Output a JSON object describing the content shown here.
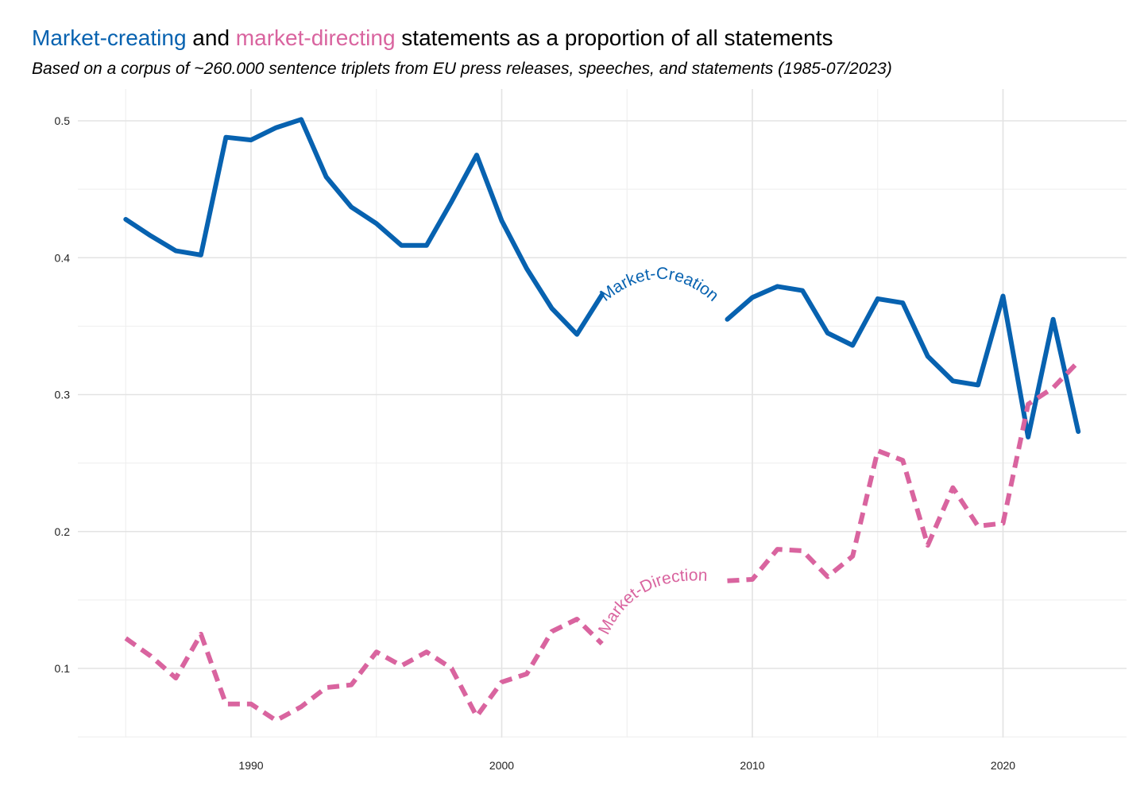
{
  "title": {
    "part1": "Market-creating",
    "part2": " and ",
    "part3": "market-directing",
    "part4": " statements as a proportion of all statements"
  },
  "subtitle": "Based on a corpus of ~260.000 sentence triplets from EU press releases, speeches, and statements (1985-07/2023)",
  "colors": {
    "market_creation": "#0762b0",
    "market_direction": "#d9649f"
  },
  "chart_data": {
    "type": "line",
    "title": "Market-creating and market-directing statements as a proportion of all statements",
    "subtitle": "Based on a corpus of ~260.000 sentence triplets from EU press releases, speeches, and statements (1985-07/2023)",
    "xlabel": "",
    "ylabel": "",
    "xlim": [
      1983,
      2025
    ],
    "ylim": [
      0.05,
      0.51
    ],
    "x_ticks": [
      1990,
      2000,
      2010,
      2020
    ],
    "y_ticks": [
      0.1,
      0.2,
      0.3,
      0.4,
      0.5
    ],
    "x_tick_labels": [
      "1990",
      "2000",
      "2010",
      "2020"
    ],
    "y_tick_labels": [
      "0.1",
      "0.2",
      "0.3",
      "0.4",
      "0.5"
    ],
    "grid": true,
    "legend": "none (direct labels on lines)",
    "series": [
      {
        "name": "Market-Creation",
        "style": "solid",
        "label_from_year": 2004,
        "label_to_year": 2009,
        "x": [
          1985,
          1986,
          1987,
          1988,
          1989,
          1990,
          1991,
          1992,
          1993,
          1994,
          1995,
          1996,
          1997,
          1998,
          1999,
          2000,
          2001,
          2002,
          2003,
          2004,
          2009,
          2010,
          2011,
          2012,
          2013,
          2014,
          2015,
          2016,
          2017,
          2018,
          2019,
          2020,
          2021,
          2022,
          2023
        ],
        "values": [
          0.428,
          0.416,
          0.405,
          0.402,
          0.488,
          0.486,
          0.495,
          0.501,
          0.459,
          0.437,
          0.425,
          0.409,
          0.409,
          0.441,
          0.475,
          0.427,
          0.392,
          0.363,
          0.344,
          0.373,
          0.355,
          0.371,
          0.379,
          0.376,
          0.345,
          0.336,
          0.37,
          0.367,
          0.328,
          0.31,
          0.307,
          0.372,
          0.269,
          0.355,
          0.273
        ]
      },
      {
        "name": "Market-Direction",
        "style": "dashed",
        "label_from_year": 2004,
        "label_to_year": 2009,
        "x": [
          1985,
          1986,
          1987,
          1988,
          1989,
          1990,
          1991,
          1992,
          1993,
          1994,
          1995,
          1996,
          1997,
          1998,
          1999,
          2000,
          2001,
          2002,
          2003,
          2004,
          2009,
          2010,
          2011,
          2012,
          2013,
          2014,
          2015,
          2016,
          2017,
          2018,
          2019,
          2020,
          2021,
          2022,
          2023
        ],
        "values": [
          0.122,
          0.109,
          0.093,
          0.125,
          0.074,
          0.074,
          0.062,
          0.072,
          0.086,
          0.088,
          0.112,
          0.102,
          0.112,
          0.1,
          0.065,
          0.09,
          0.096,
          0.127,
          0.136,
          0.118,
          0.164,
          0.165,
          0.187,
          0.186,
          0.167,
          0.182,
          0.259,
          0.252,
          0.19,
          0.232,
          0.204,
          0.206,
          0.293,
          0.305,
          0.324
        ]
      }
    ]
  }
}
